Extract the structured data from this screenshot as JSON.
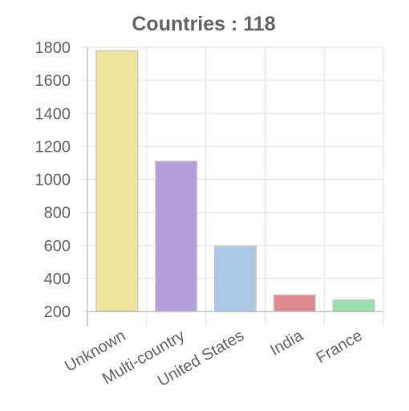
{
  "chart_data": {
    "type": "bar",
    "title": "Countries : 118",
    "categories": [
      "Unknown",
      "Multi-country",
      "United States",
      "India",
      "France"
    ],
    "values": [
      1780,
      1110,
      595,
      300,
      270
    ],
    "colors": [
      "#efe49c",
      "#b39ddb",
      "#aac9e4",
      "#e08a90",
      "#98dfae"
    ],
    "border_color": "#c8c8c8",
    "ylim": [
      200,
      1800
    ],
    "yticks": [
      200,
      400,
      600,
      800,
      1000,
      1200,
      1400,
      1600,
      1800
    ],
    "grid": true,
    "legend": "none"
  }
}
